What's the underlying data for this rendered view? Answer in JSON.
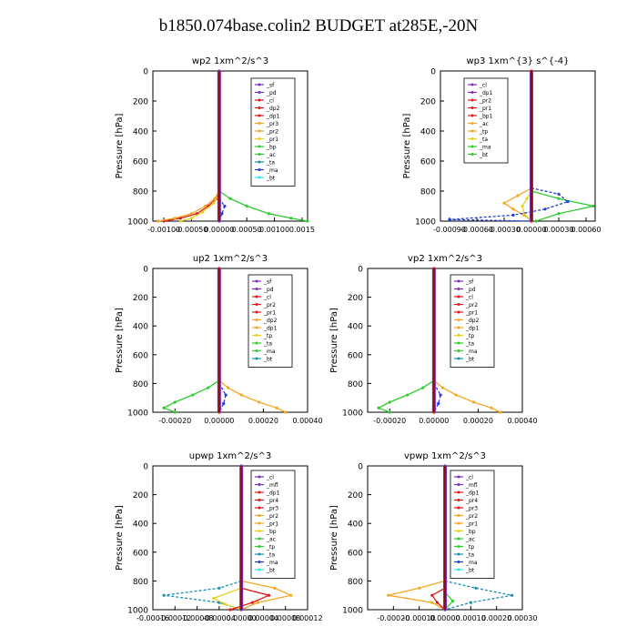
{
  "page_title": "b1850.074base.colin2  BUDGET at285E,-20N",
  "colors": {
    "purple": "#7b2fbe",
    "red": "#e01818",
    "orange": "#f5a623",
    "yellow": "#e8d020",
    "green": "#2ecc2e",
    "blue": "#1f3fd6",
    "teal": "#1a8fb0",
    "cyan": "#2ee6e6",
    "darkred": "#8b1010",
    "black": "#000000"
  },
  "chart_data": [
    {
      "type": "line",
      "title": "wp2   1xm^2/s^3",
      "ylabel": "Pressure  [hPa]",
      "ylim": [
        1000,
        0
      ],
      "xlim": [
        -0.0012,
        0.0016
      ],
      "yticks": [
        "0",
        "200",
        "400",
        "600",
        "800",
        "1000"
      ],
      "xticks": [
        "-0.00100",
        "-0.00050",
        "0.00000",
        "0.00050",
        "0.00100",
        "0.0015"
      ],
      "xtick_values": [
        -0.001,
        -0.0005,
        0.0,
        0.0005,
        0.001,
        0.0015
      ],
      "legend": [
        "_sf",
        "_pd",
        "_cl",
        "_dp2",
        "_dp1",
        "_pr3",
        "_pr2",
        "_pr1",
        "_bp",
        "_ac",
        "_ta",
        "_ma",
        "_bt"
      ],
      "series": [
        {
          "name": "_dp1",
          "color": "red",
          "p": [
            800,
            850,
            900,
            950,
            980,
            1000
          ],
          "x": [
            0,
            -5e-05,
            -0.0002,
            -0.0004,
            -0.0007,
            -0.001
          ]
        },
        {
          "name": "_pr2",
          "color": "orange",
          "p": [
            800,
            850,
            900,
            950,
            980,
            1000
          ],
          "x": [
            0,
            -8e-05,
            -0.00025,
            -0.0005,
            -0.0008,
            -0.0011
          ]
        },
        {
          "name": "_pr1",
          "color": "yellow",
          "p": [
            820,
            880,
            940,
            980,
            1000
          ],
          "x": [
            0,
            -0.0001,
            -0.0003,
            -0.0005,
            -0.0007
          ]
        },
        {
          "name": "_bp",
          "color": "green",
          "p": [
            800,
            850,
            900,
            950,
            980,
            1000
          ],
          "x": [
            0,
            0.0002,
            0.0005,
            0.0009,
            0.0013,
            0.0016
          ]
        },
        {
          "name": "_ac",
          "color": "blue",
          "p": [
            850,
            900,
            950,
            1000
          ],
          "x": [
            0,
            0.0001,
            5e-05,
            0
          ]
        },
        {
          "name": "_sf",
          "color": "purple",
          "p": [
            0,
            1000
          ],
          "x": [
            0,
            0
          ]
        }
      ]
    },
    {
      "type": "line",
      "title": "wp3   1xm^{3} s^{-4}",
      "ylabel": "Pressure  [hPa]",
      "ylim": [
        1000,
        0
      ],
      "xlim": [
        -0.001,
        0.0007
      ],
      "yticks": [
        "0",
        "200",
        "400",
        "600",
        "800",
        "1000"
      ],
      "xticks": [
        "-0.00090",
        "-0.00060",
        "-0.00030",
        "0.00000",
        "0.00030",
        "0.00060"
      ],
      "xtick_values": [
        -0.0009,
        -0.0006,
        -0.0003,
        0.0,
        0.0003,
        0.0006
      ],
      "legend": [
        "_cl",
        "_dp1",
        "_pr2",
        "_pr1",
        "_bp1",
        "_ac",
        "_tp",
        "_ta",
        "_ma",
        "_bt"
      ],
      "series": [
        {
          "name": "_pr2",
          "color": "orange",
          "p": [
            780,
            830,
            880,
            920,
            960,
            1000
          ],
          "x": [
            0,
            -0.00015,
            -0.0003,
            -0.0002,
            -8e-05,
            0
          ]
        },
        {
          "name": "_pr1",
          "color": "yellow",
          "p": [
            800,
            850,
            900,
            950,
            1000
          ],
          "x": [
            0,
            -5e-05,
            -0.0001,
            -8e-05,
            0
          ]
        },
        {
          "name": "_bp1",
          "color": "green",
          "p": [
            800,
            850,
            900,
            950,
            1000
          ],
          "x": [
            0,
            0.0003,
            0.00068,
            0.0003,
            5e-05
          ]
        },
        {
          "name": "_ta",
          "color": "blue",
          "p": [
            780,
            820,
            870,
            920,
            960,
            990,
            1000
          ],
          "x": [
            0,
            0.0003,
            0.0004,
            0.00015,
            -0.0002,
            -0.0009,
            0
          ]
        },
        {
          "name": "_cl",
          "color": "red",
          "p": [
            0,
            1000
          ],
          "x": [
            0,
            0
          ]
        }
      ]
    },
    {
      "type": "line",
      "title": "up2   1xm^2/s^3",
      "ylabel": "Pressure  [hPa]",
      "ylim": [
        1000,
        0
      ],
      "xlim": [
        -0.0003,
        0.0004
      ],
      "yticks": [
        "0",
        "200",
        "400",
        "600",
        "800",
        "1000"
      ],
      "xticks": [
        "-0.00020",
        "0.00000",
        "0.00020",
        "0.00040"
      ],
      "xtick_values": [
        -0.0002,
        0.0,
        0.0002,
        0.0004
      ],
      "legend": [
        "_sf",
        "_pd",
        "_cl",
        "_pr2",
        "_pr1",
        "_dp2",
        "_dp1",
        "_tp",
        "_ta",
        "_ma",
        "_bt"
      ],
      "series": [
        {
          "name": "_dp1",
          "color": "green",
          "p": [
            780,
            830,
            880,
            930,
            970,
            1000
          ],
          "x": [
            0,
            -5e-05,
            -0.00012,
            -0.0002,
            -0.00025,
            -0.0002
          ]
        },
        {
          "name": "_pr2",
          "color": "orange",
          "p": [
            780,
            830,
            880,
            930,
            970,
            1000
          ],
          "x": [
            0,
            4e-05,
            0.0001,
            0.00018,
            0.00026,
            0.0003
          ]
        },
        {
          "name": "_ta",
          "color": "blue",
          "p": [
            800,
            880,
            940,
            1000
          ],
          "x": [
            0,
            3e-05,
            2e-05,
            0
          ]
        },
        {
          "name": "_sf",
          "color": "red",
          "p": [
            0,
            1000
          ],
          "x": [
            0,
            0
          ]
        }
      ]
    },
    {
      "type": "line",
      "title": "vp2   1xm^2/s^3",
      "ylabel": "Pressure  [hPa]",
      "ylim": [
        1000,
        0
      ],
      "xlim": [
        -0.0003,
        0.0004
      ],
      "yticks": [
        "0",
        "200",
        "400",
        "600",
        "800",
        "1000"
      ],
      "xticks": [
        "-0.00020",
        "0.00000",
        "0.00020",
        "0.00040"
      ],
      "xtick_values": [
        -0.0002,
        0.0,
        0.0002,
        0.0004
      ],
      "legend": [
        "_sf",
        "_pd",
        "_cl",
        "_pr2",
        "_pr1",
        "_dp2",
        "_dp1",
        "_tp",
        "_ta",
        "_ma",
        "_bt"
      ],
      "series": [
        {
          "name": "_dp1",
          "color": "green",
          "p": [
            780,
            830,
            880,
            930,
            970,
            1000
          ],
          "x": [
            0,
            -5e-05,
            -0.00012,
            -0.0002,
            -0.00025,
            -0.0002
          ]
        },
        {
          "name": "_pr2",
          "color": "orange",
          "p": [
            780,
            830,
            880,
            930,
            970,
            1000
          ],
          "x": [
            0,
            4e-05,
            0.0001,
            0.00018,
            0.00026,
            0.0003
          ]
        },
        {
          "name": "_ta",
          "color": "blue",
          "p": [
            800,
            880,
            940,
            1000
          ],
          "x": [
            0,
            3e-05,
            2e-05,
            0
          ]
        },
        {
          "name": "_sf",
          "color": "red",
          "p": [
            0,
            1000
          ],
          "x": [
            0,
            0
          ]
        }
      ]
    },
    {
      "type": "line",
      "title": "upwp   1xm^2/s^3",
      "ylabel": "Pressure  [hPa]",
      "ylim": [
        1000,
        0
      ],
      "xlim": [
        -0.00016,
        0.00012
      ],
      "yticks": [
        "0",
        "200",
        "400",
        "600",
        "800",
        "1000"
      ],
      "xticks": [
        "-0.00016",
        "-0.00012",
        "-0.00008",
        "-0.00004",
        "0.00000",
        "0.00004",
        "0.00008",
        "0.00012"
      ],
      "xtick_values": [
        -0.00016,
        -0.00012,
        -8e-05,
        -4e-05,
        0.0,
        4e-05,
        8e-05,
        0.00012
      ],
      "legend": [
        "_cl",
        "_mfl",
        "_dp1",
        "_pr4",
        "_pr3",
        "_pr2",
        "_pr1",
        "_bp",
        "_ac",
        "_tp",
        "_ta",
        "_ma",
        "_bt"
      ],
      "series": [
        {
          "name": "_ta",
          "color": "teal",
          "p": [
            800,
            850,
            900,
            950,
            1000
          ],
          "x": [
            0,
            -4e-05,
            -0.00014,
            -4e-05,
            0
          ]
        },
        {
          "name": "_pr2",
          "color": "orange",
          "p": [
            800,
            850,
            900,
            950,
            1000
          ],
          "x": [
            0,
            6e-05,
            9e-05,
            3e-05,
            0
          ]
        },
        {
          "name": "_pr3",
          "color": "yellow",
          "p": [
            850,
            920,
            960,
            1000
          ],
          "x": [
            0,
            -5e-05,
            -3e-05,
            0
          ]
        },
        {
          "name": "_dp1",
          "color": "red",
          "p": [
            850,
            900,
            950,
            1000
          ],
          "x": [
            0,
            5e-05,
            2e-05,
            -2e-05
          ]
        },
        {
          "name": "_cl",
          "color": "purple",
          "p": [
            0,
            1000
          ],
          "x": [
            0,
            0
          ]
        }
      ]
    },
    {
      "type": "line",
      "title": "vpwp   1xm^2/s^3",
      "ylabel": "Pressure  [hPa]",
      "ylim": [
        1000,
        0
      ],
      "xlim": [
        -0.0003,
        0.0003
      ],
      "yticks": [
        "0",
        "200",
        "400",
        "600",
        "800",
        "1000"
      ],
      "xticks": [
        "-0.00020",
        "-0.00010",
        "0.00000",
        "0.00010",
        "0.00020",
        "0.00030"
      ],
      "xtick_values": [
        -0.0002,
        -0.0001,
        0.0,
        0.0001,
        0.0002,
        0.0003
      ],
      "legend": [
        "_cl",
        "_mfl",
        "_dp1",
        "_pr4",
        "_pr3",
        "_pr2",
        "_pr1",
        "_bp",
        "_ac",
        "_tp",
        "_ta",
        "_ma",
        "_bt"
      ],
      "series": [
        {
          "name": "_pr2",
          "color": "orange",
          "p": [
            800,
            850,
            900,
            950,
            1000
          ],
          "x": [
            0,
            -0.0001,
            -0.00022,
            -5e-05,
            0
          ]
        },
        {
          "name": "_ta",
          "color": "teal",
          "p": [
            800,
            850,
            900,
            950,
            1000
          ],
          "x": [
            0,
            0.00012,
            0.00026,
            0.0001,
            0
          ]
        },
        {
          "name": "_dp1",
          "color": "red",
          "p": [
            850,
            900,
            950,
            1000
          ],
          "x": [
            0,
            -5e-05,
            -3e-05,
            0
          ]
        },
        {
          "name": "_bp",
          "color": "green",
          "p": [
            880,
            940,
            1000
          ],
          "x": [
            0,
            3e-05,
            0
          ]
        },
        {
          "name": "_cl",
          "color": "purple",
          "p": [
            0,
            1000
          ],
          "x": [
            0,
            0
          ]
        }
      ]
    }
  ]
}
